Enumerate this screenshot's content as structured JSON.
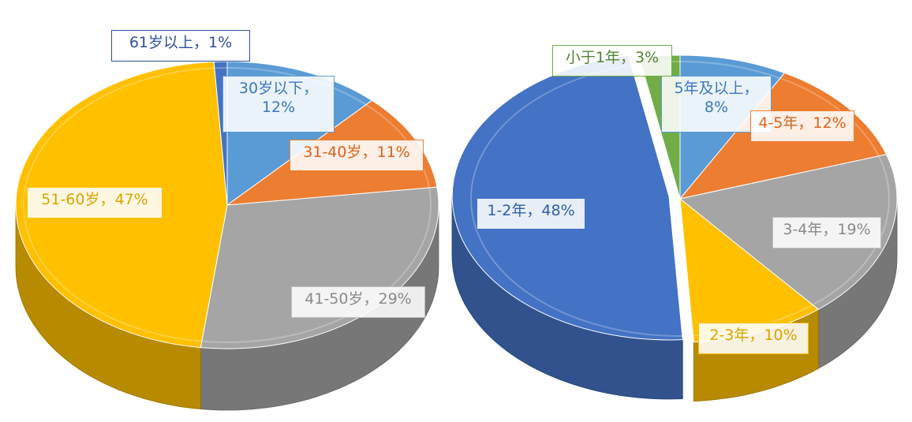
{
  "chart_data": [
    {
      "type": "pie",
      "title": "",
      "slices": [
        {
          "label": "30岁以下",
          "value": 12,
          "display": "30岁以下，\n12%",
          "color": "#5b9bd5"
        },
        {
          "label": "31-40岁",
          "value": 11,
          "display": "31-40岁，11%",
          "color": "#ed7d31"
        },
        {
          "label": "41-50岁",
          "value": 29,
          "display": "41-50岁，29%",
          "color": "#a5a5a5"
        },
        {
          "label": "51-60岁",
          "value": 47,
          "display": "51-60岁，47%",
          "color": "#ffc000"
        },
        {
          "label": "61岁以上",
          "value": 1,
          "display": "61岁以上，1%",
          "color": "#4472c4"
        }
      ]
    },
    {
      "type": "pie",
      "title": "",
      "slices": [
        {
          "label": "5年及以上",
          "value": 8,
          "display": "5年及以上，\n8%",
          "color": "#5b9bd5"
        },
        {
          "label": "4-5年",
          "value": 12,
          "display": "4-5年，12%",
          "color": "#ed7d31"
        },
        {
          "label": "3-4年",
          "value": 19,
          "display": "3-4年，19%",
          "color": "#a5a5a5"
        },
        {
          "label": "2-3年",
          "value": 10,
          "display": "2-3年，10%",
          "color": "#ffc000"
        },
        {
          "label": "1-2年",
          "value": 48,
          "display": "1-2年，48%",
          "color": "#4472c4"
        },
        {
          "label": "小于1年",
          "value": 3,
          "display": "小于1年，3%",
          "color": "#70ad47"
        }
      ]
    }
  ]
}
